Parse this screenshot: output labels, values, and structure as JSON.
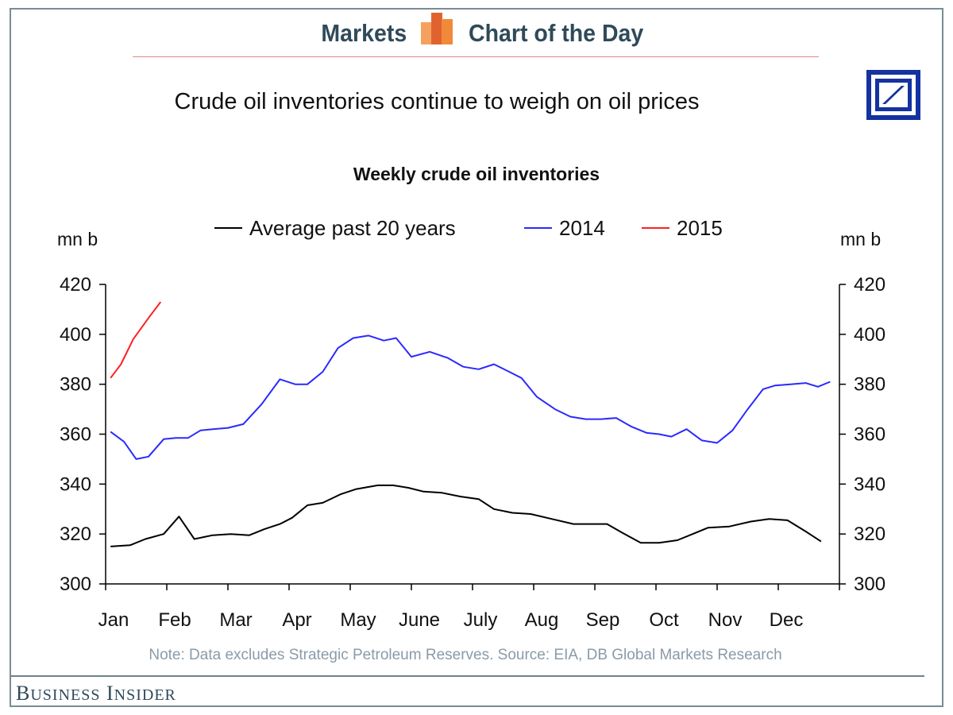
{
  "header": {
    "left": "Markets",
    "right": "Chart of the Day"
  },
  "title": "Crude oil inventories continue to weigh on oil prices",
  "brand": "Business Insider",
  "note": "Note: Data excludes Strategic Petroleum Reserves. Source: EIA, DB Global Markets Research",
  "colors": {
    "avg": "#000000",
    "y2014": "#2a2aff",
    "y2015": "#ff2020",
    "header": "#2f4a5a",
    "logo": "#1432a0"
  },
  "chart_data": {
    "type": "line",
    "title": "Weekly crude oil inventories",
    "ylabel_left": "mn b",
    "ylabel_right": "mn b",
    "ylim": [
      300,
      420
    ],
    "yticks": [
      300,
      320,
      340,
      360,
      380,
      400,
      420
    ],
    "xlim": [
      0,
      12
    ],
    "months": [
      "Jan",
      "Feb",
      "Mar",
      "Apr",
      "May",
      "June",
      "July",
      "Aug",
      "Sep",
      "Oct",
      "Nov",
      "Dec"
    ],
    "legend": [
      "Average past 20 years",
      "2014",
      "2015"
    ],
    "series": [
      {
        "name": "Average past 20 years",
        "x": [
          0.08,
          0.4,
          0.65,
          0.95,
          1.2,
          1.45,
          1.75,
          2.05,
          2.35,
          2.6,
          2.85,
          3.05,
          3.3,
          3.55,
          3.85,
          4.1,
          4.45,
          4.7,
          4.95,
          5.2,
          5.5,
          5.8,
          6.1,
          6.35,
          6.65,
          6.95,
          7.3,
          7.65,
          7.9,
          8.2,
          8.45,
          8.75,
          9.05,
          9.35,
          9.6,
          9.85,
          10.2,
          10.55,
          10.85,
          11.15,
          11.45,
          11.7
        ],
        "values": [
          315,
          315.5,
          318,
          320,
          327,
          318,
          319.5,
          320,
          319.5,
          322,
          324,
          326.5,
          331.5,
          332.5,
          336,
          338,
          339.5,
          339.5,
          338.5,
          337,
          336.5,
          335,
          334,
          330,
          328.5,
          328,
          326,
          324,
          324,
          324,
          320.5,
          316.5,
          316.5,
          317.5,
          320,
          322.5,
          323,
          325,
          326,
          325.5,
          321,
          317
        ]
      },
      {
        "name": "2014",
        "x": [
          0.08,
          0.3,
          0.5,
          0.7,
          0.95,
          1.15,
          1.35,
          1.55,
          1.75,
          2.0,
          2.25,
          2.55,
          2.85,
          3.1,
          3.3,
          3.55,
          3.8,
          4.05,
          4.3,
          4.55,
          4.75,
          5.0,
          5.3,
          5.6,
          5.85,
          6.1,
          6.35,
          6.6,
          6.8,
          7.05,
          7.35,
          7.6,
          7.85,
          8.1,
          8.35,
          8.6,
          8.85,
          9.05,
          9.25,
          9.5,
          9.75,
          10.0,
          10.25,
          10.5,
          10.75,
          10.95,
          11.2,
          11.45,
          11.65,
          11.85
        ],
        "values": [
          361,
          357,
          350,
          351,
          358,
          358.5,
          358.5,
          361.5,
          362,
          362.5,
          364,
          372,
          382,
          380,
          380,
          385,
          394.5,
          398.5,
          399.5,
          397.5,
          398.5,
          391,
          393,
          390.5,
          387,
          386,
          388,
          385,
          382.5,
          375,
          370,
          367,
          366,
          366,
          366.5,
          363,
          360.5,
          360,
          359,
          362,
          357.5,
          356.5,
          361.5,
          370,
          378,
          379.5,
          380,
          380.5,
          379,
          381
        ]
      },
      {
        "name": "2015",
        "x": [
          0.08,
          0.25,
          0.45,
          0.7,
          0.9
        ],
        "values": [
          382.5,
          388,
          398,
          406.5,
          413
        ]
      }
    ]
  }
}
